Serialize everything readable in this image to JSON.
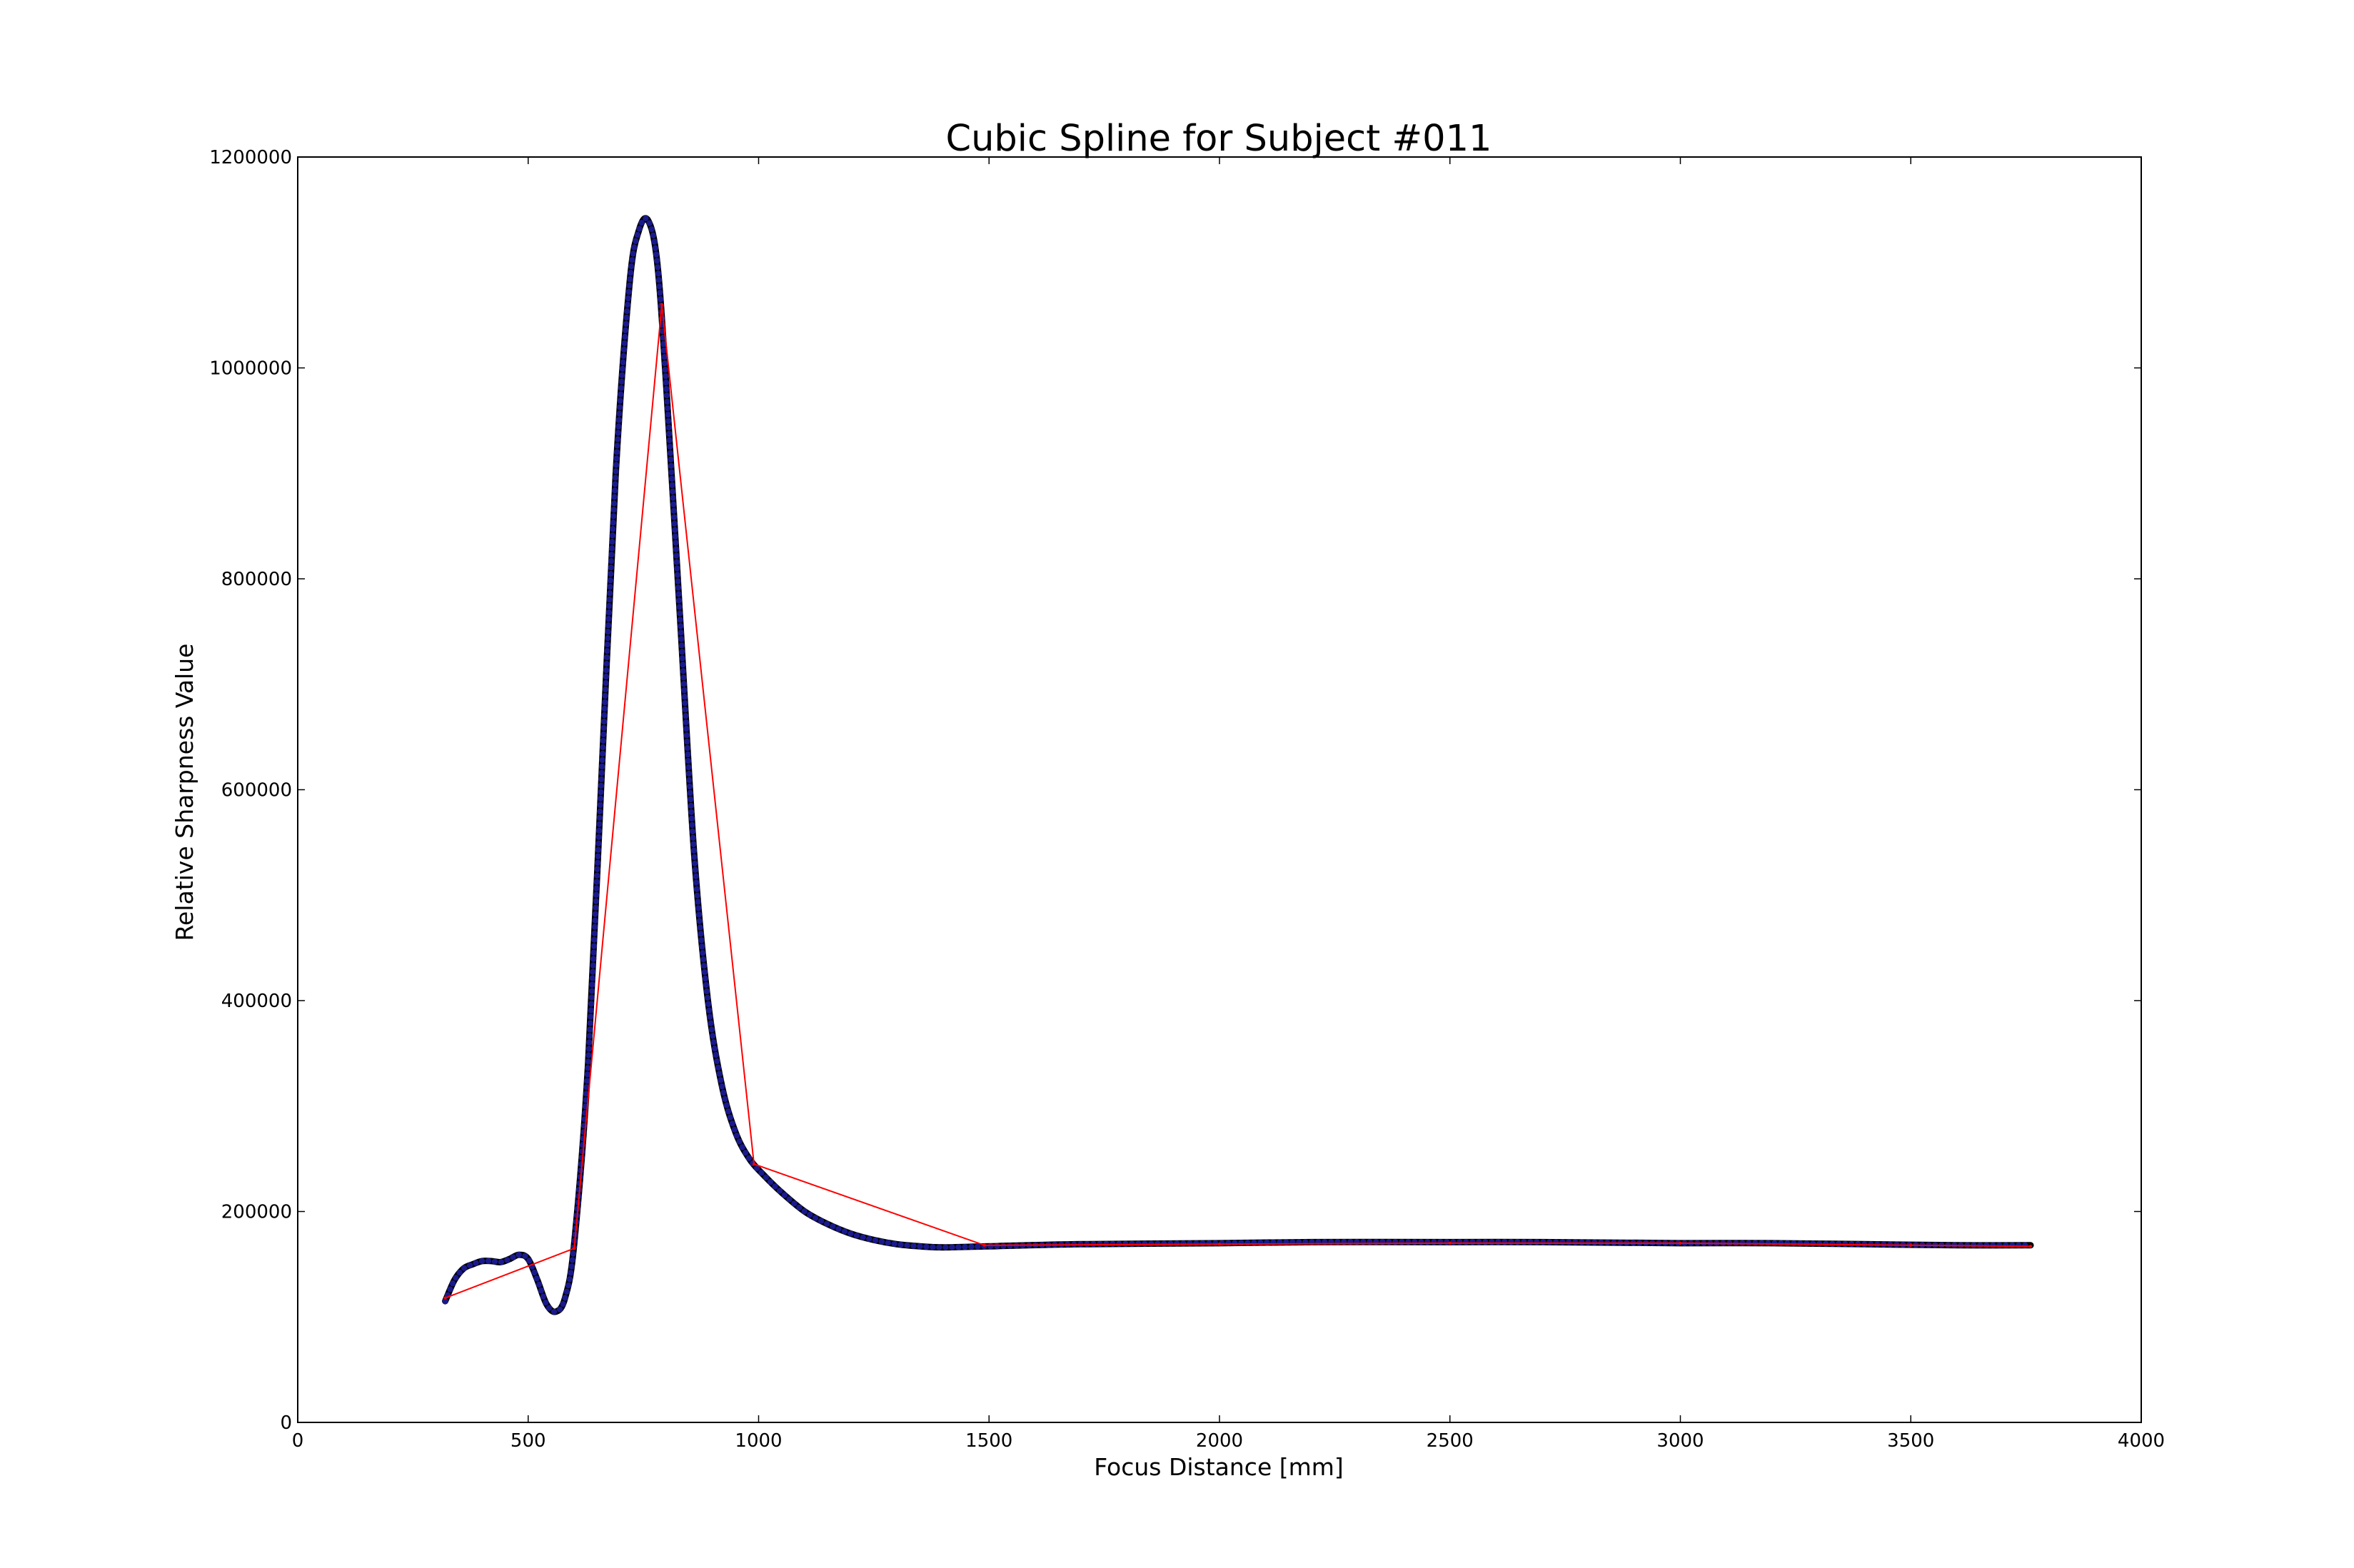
{
  "chart_data": {
    "type": "line",
    "title": "Cubic Spline for Subject #011",
    "xlabel": "Focus Distance [mm]",
    "ylabel": "Relative Sharpness Value",
    "xlim": [
      0,
      4000
    ],
    "ylim": [
      0,
      1200000
    ],
    "xticks": [
      "0",
      "500",
      "1000",
      "1500",
      "2000",
      "2500",
      "3000",
      "3500",
      "4000"
    ],
    "yticks": [
      "0",
      "200000",
      "400000",
      "600000",
      "800000",
      "1000000",
      "1200000"
    ],
    "grid": false,
    "legend": "none",
    "series": [
      {
        "style": "red line",
        "color": "#ff0000",
        "x": [
          320,
          600,
          790,
          990,
          1490,
          2000,
          2500,
          3000,
          3500,
          3760
        ],
        "y": [
          118000,
          165000,
          1060000,
          245000,
          168000,
          169000,
          170000,
          170000,
          168000,
          167000
        ]
      },
      {
        "style": "dense dotted spline",
        "color": "#000000",
        "pointColor": "#1a1a8c",
        "x": [
          320,
          340,
          360,
          380,
          400,
          420,
          440,
          460,
          480,
          500,
          520,
          540,
          560,
          580,
          600,
          630,
          660,
          690,
          720,
          740,
          760,
          780,
          800,
          830,
          860,
          890,
          920,
          950,
          980,
          1010,
          1050,
          1100,
          1150,
          1200,
          1250,
          1300,
          1350,
          1400,
          1500,
          1700,
          2000,
          2200,
          2500,
          2700,
          3000,
          3200,
          3400,
          3600,
          3760
        ],
        "y": [
          115000,
          135000,
          146000,
          150000,
          153000,
          153000,
          152000,
          155000,
          159000,
          155000,
          135000,
          112000,
          105000,
          118000,
          170000,
          340000,
          620000,
          900000,
          1080000,
          1130000,
          1140000,
          1100000,
          980000,
          760000,
          540000,
          400000,
          320000,
          275000,
          250000,
          235000,
          218000,
          200000,
          188000,
          179000,
          173000,
          169000,
          167000,
          166000,
          167000,
          169000,
          170000,
          171000,
          171000,
          171000,
          170000,
          170000,
          169000,
          168000,
          168000
        ]
      }
    ]
  }
}
